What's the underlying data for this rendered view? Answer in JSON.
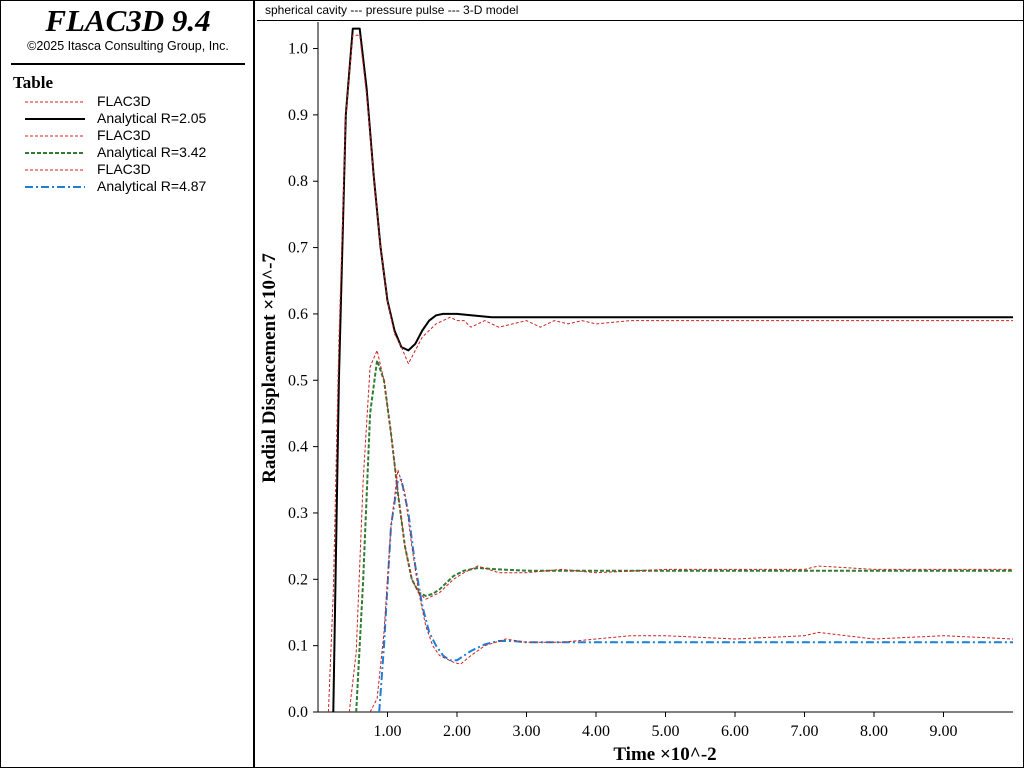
{
  "app": {
    "title": "FLAC3D 9.4",
    "copyright": "©2025 Itasca Consulting Group, Inc."
  },
  "legend": {
    "title": "Table",
    "items": [
      {
        "label": "FLAC3D",
        "color": "#cc2222",
        "style": "dashed-thin"
      },
      {
        "label": "Analytical R=2.05",
        "color": "#000000",
        "style": "solid"
      },
      {
        "label": "FLAC3D",
        "color": "#cc2222",
        "style": "dashed-thin"
      },
      {
        "label": "Analytical R=3.42",
        "color": "#2e7d32",
        "style": "dashed"
      },
      {
        "label": "FLAC3D",
        "color": "#cc2222",
        "style": "dashed-thin"
      },
      {
        "label": "Analytical R=4.87",
        "color": "#1e7fd6",
        "style": "dashdot"
      }
    ]
  },
  "chart_data": {
    "type": "line",
    "title": "spherical cavity --- pressure pulse --- 3-D model",
    "xlabel": "Time ×10^-2",
    "ylabel": "Radial Displacement ×10^-7",
    "xlim": [
      0,
      10
    ],
    "ylim": [
      0,
      1.04
    ],
    "x_ticks": [
      "1.00",
      "2.00",
      "3.00",
      "4.00",
      "5.00",
      "6.00",
      "7.00",
      "8.00",
      "9.00"
    ],
    "y_ticks": [
      "0.0",
      "0.1",
      "0.2",
      "0.3",
      "0.4",
      "0.5",
      "0.6",
      "0.7",
      "0.8",
      "0.9",
      "1.0"
    ],
    "series": [
      {
        "name": "FLAC3D",
        "color": "#cc2222",
        "style": "dashed-thin",
        "x": [
          0.15,
          0.22,
          0.3,
          0.4,
          0.5,
          0.6,
          0.7,
          0.8,
          0.9,
          1.0,
          1.1,
          1.2,
          1.3,
          1.4,
          1.5,
          1.6,
          1.7,
          1.8,
          1.9,
          2.0,
          2.1,
          2.2,
          2.4,
          2.6,
          2.8,
          3.0,
          3.2,
          3.4,
          3.6,
          3.8,
          4.0,
          4.5,
          5.0,
          5.5,
          6.0,
          6.5,
          7.0,
          7.5,
          8.0,
          8.5,
          9.0,
          9.5,
          10.0
        ],
        "y": [
          0.0,
          0.18,
          0.56,
          0.9,
          1.02,
          1.02,
          0.93,
          0.81,
          0.7,
          0.62,
          0.57,
          0.55,
          0.525,
          0.545,
          0.565,
          0.575,
          0.585,
          0.59,
          0.595,
          0.59,
          0.59,
          0.58,
          0.59,
          0.58,
          0.585,
          0.59,
          0.58,
          0.59,
          0.585,
          0.59,
          0.585,
          0.59,
          0.59,
          0.59,
          0.59,
          0.59,
          0.59,
          0.59,
          0.59,
          0.59,
          0.59,
          0.59,
          0.59
        ]
      },
      {
        "name": "Analytical R=2.05",
        "color": "#000000",
        "style": "solid",
        "x": [
          0.22,
          0.3,
          0.4,
          0.5,
          0.6,
          0.7,
          0.8,
          0.9,
          1.0,
          1.1,
          1.2,
          1.3,
          1.4,
          1.5,
          1.6,
          1.7,
          1.8,
          1.9,
          2.0,
          2.2,
          2.5,
          3.0,
          4.0,
          5.0,
          6.0,
          7.0,
          8.0,
          9.0,
          10.0
        ],
        "y": [
          0.0,
          0.5,
          0.9,
          1.03,
          1.03,
          0.94,
          0.81,
          0.7,
          0.62,
          0.575,
          0.55,
          0.545,
          0.555,
          0.575,
          0.59,
          0.598,
          0.6,
          0.6,
          0.6,
          0.598,
          0.595,
          0.595,
          0.595,
          0.595,
          0.595,
          0.595,
          0.595,
          0.595,
          0.595
        ]
      },
      {
        "name": "FLAC3D",
        "color": "#cc2222",
        "style": "dashed-thin",
        "x": [
          0.45,
          0.55,
          0.65,
          0.75,
          0.85,
          0.95,
          1.05,
          1.15,
          1.25,
          1.35,
          1.45,
          1.55,
          1.65,
          1.75,
          1.85,
          1.95,
          2.1,
          2.3,
          2.6,
          3.0,
          3.5,
          4.0,
          5.0,
          6.0,
          7.0,
          7.2,
          8.0,
          9.0,
          10.0
        ],
        "y": [
          0.0,
          0.09,
          0.35,
          0.52,
          0.545,
          0.5,
          0.42,
          0.33,
          0.25,
          0.2,
          0.18,
          0.17,
          0.175,
          0.18,
          0.19,
          0.2,
          0.21,
          0.22,
          0.21,
          0.21,
          0.215,
          0.21,
          0.215,
          0.215,
          0.215,
          0.22,
          0.215,
          0.215,
          0.215
        ]
      },
      {
        "name": "Analytical R=3.42",
        "color": "#2e7d32",
        "style": "dashed",
        "x": [
          0.55,
          0.65,
          0.75,
          0.85,
          0.95,
          1.05,
          1.15,
          1.25,
          1.35,
          1.45,
          1.55,
          1.65,
          1.75,
          1.85,
          1.95,
          2.1,
          2.3,
          2.6,
          3.0,
          4.0,
          5.0,
          6.0,
          7.0,
          8.0,
          9.0,
          10.0
        ],
        "y": [
          0.0,
          0.2,
          0.45,
          0.53,
          0.5,
          0.42,
          0.33,
          0.25,
          0.2,
          0.18,
          0.175,
          0.178,
          0.185,
          0.195,
          0.205,
          0.213,
          0.217,
          0.215,
          0.213,
          0.213,
          0.213,
          0.213,
          0.213,
          0.213,
          0.213,
          0.213
        ]
      },
      {
        "name": "FLAC3D",
        "color": "#cc2222",
        "style": "dashed-thin",
        "x": [
          0.75,
          0.85,
          0.95,
          1.05,
          1.15,
          1.25,
          1.35,
          1.45,
          1.55,
          1.65,
          1.75,
          1.85,
          1.95,
          2.05,
          2.2,
          2.4,
          2.7,
          3.0,
          3.5,
          4.0,
          4.5,
          5.0,
          6.0,
          7.0,
          7.2,
          8.0,
          9.0,
          10.0
        ],
        "y": [
          0.0,
          0.02,
          0.12,
          0.28,
          0.365,
          0.33,
          0.25,
          0.18,
          0.13,
          0.1,
          0.085,
          0.08,
          0.075,
          0.072,
          0.085,
          0.1,
          0.11,
          0.105,
          0.105,
          0.11,
          0.115,
          0.115,
          0.11,
          0.115,
          0.12,
          0.11,
          0.115,
          0.11
        ]
      },
      {
        "name": "Analytical R=4.87",
        "color": "#1e7fd6",
        "style": "dashdot",
        "x": [
          0.88,
          0.95,
          1.05,
          1.15,
          1.2,
          1.3,
          1.4,
          1.5,
          1.6,
          1.7,
          1.8,
          1.9,
          2.0,
          2.1,
          2.2,
          2.4,
          2.6,
          2.8,
          3.0,
          4.0,
          5.0,
          6.0,
          7.0,
          8.0,
          9.0,
          10.0
        ],
        "y": [
          0.0,
          0.1,
          0.28,
          0.35,
          0.35,
          0.3,
          0.22,
          0.16,
          0.12,
          0.1,
          0.085,
          0.078,
          0.078,
          0.085,
          0.092,
          0.102,
          0.107,
          0.107,
          0.105,
          0.105,
          0.105,
          0.105,
          0.105,
          0.105,
          0.105,
          0.105
        ]
      }
    ]
  }
}
